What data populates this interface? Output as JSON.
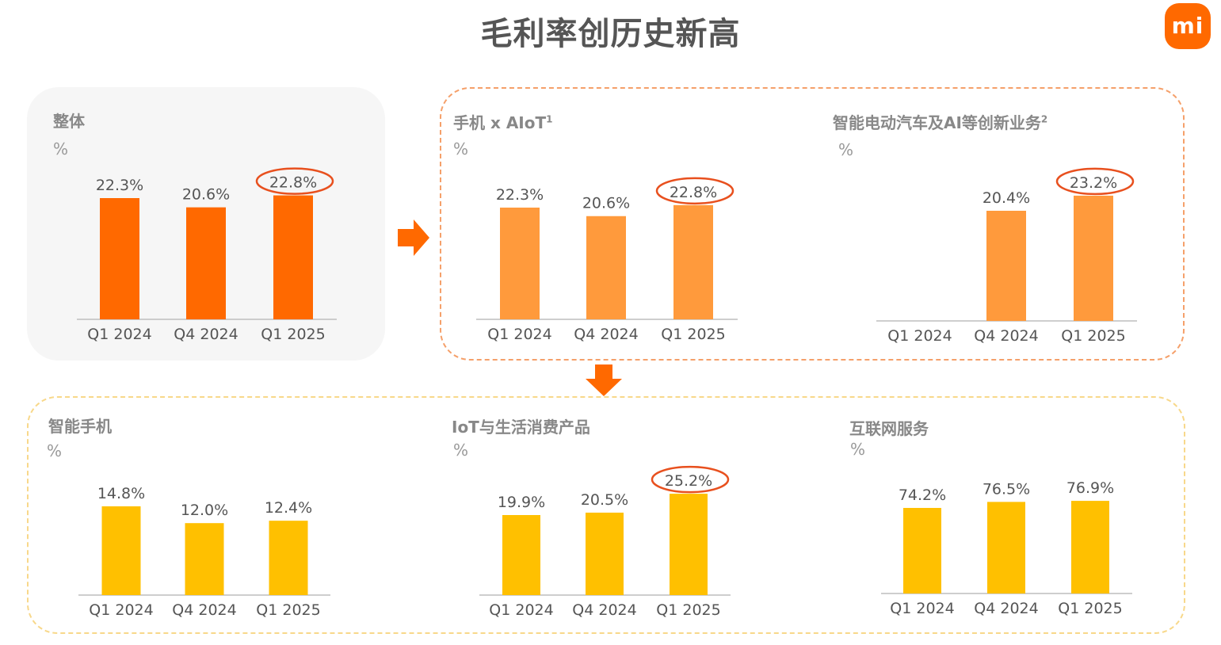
{
  "page": {
    "title": "毛利率创历史新高",
    "logo_text": "mi",
    "colors": {
      "brand_orange": "#ff6900",
      "segment_orange": "#ff9a3c",
      "segment_yellow": "#ffc000",
      "highlight_ring": "#e8501e"
    }
  },
  "chart_data": [
    {
      "id": "overall",
      "type": "bar",
      "title": "整体",
      "unit": "%",
      "categories": [
        "Q1 2024",
        "Q4 2024",
        "Q1 2025"
      ],
      "values": [
        22.3,
        20.6,
        22.8
      ],
      "labels": [
        "22.3%",
        "20.6%",
        "22.8%"
      ],
      "highlight_index": 2,
      "color": "#ff6900"
    },
    {
      "id": "phone-aiot",
      "type": "bar",
      "title": "手机 x AIoT",
      "title_sup": "1",
      "unit": "%",
      "categories": [
        "Q1 2024",
        "Q4 2024",
        "Q1 2025"
      ],
      "values": [
        22.3,
        20.6,
        22.8
      ],
      "labels": [
        "22.3%",
        "20.6%",
        "22.8%"
      ],
      "highlight_index": 2,
      "color": "#ff9a3c"
    },
    {
      "id": "ev-ai",
      "type": "bar",
      "title": "智能电动汽车及AI等创新业务",
      "title_sup": "2",
      "unit": "%",
      "categories": [
        "Q1 2024",
        "Q4 2024",
        "Q1 2025"
      ],
      "values": [
        null,
        20.4,
        23.2
      ],
      "labels": [
        "",
        "20.4%",
        "23.2%"
      ],
      "highlight_index": 2,
      "color": "#ff9a3c"
    },
    {
      "id": "smartphone",
      "type": "bar",
      "title": "智能手机",
      "unit": "%",
      "categories": [
        "Q1 2024",
        "Q4 2024",
        "Q1 2025"
      ],
      "values": [
        14.8,
        12.0,
        12.4
      ],
      "labels": [
        "14.8%",
        "12.0%",
        "12.4%"
      ],
      "highlight_index": null,
      "color": "#ffc000"
    },
    {
      "id": "iot",
      "type": "bar",
      "title": "IoT与生活消费产品",
      "unit": "%",
      "categories": [
        "Q1 2024",
        "Q4 2024",
        "Q1 2025"
      ],
      "values": [
        19.9,
        20.5,
        25.2
      ],
      "labels": [
        "19.9%",
        "20.5%",
        "25.2%"
      ],
      "highlight_index": 2,
      "color": "#ffc000"
    },
    {
      "id": "internet",
      "type": "bar",
      "title": "互联网服务",
      "unit": "%",
      "categories": [
        "Q1 2024",
        "Q4 2024",
        "Q1 2025"
      ],
      "values": [
        74.2,
        76.5,
        76.9
      ],
      "labels": [
        "74.2%",
        "76.5%",
        "76.9%"
      ],
      "highlight_index": null,
      "color": "#ffc000"
    }
  ]
}
